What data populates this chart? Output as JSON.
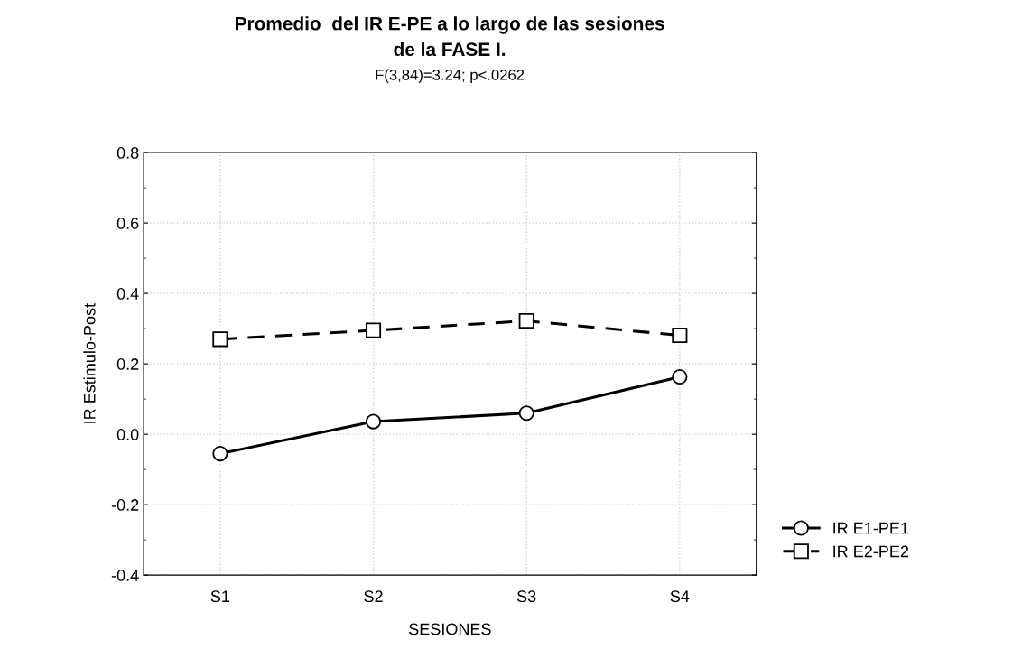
{
  "chart_data": {
    "type": "line",
    "title": "Promedio  del IR E-PE a lo largo de las sesiones\nde la FASE I.",
    "subtitle": "F(3,84)=3.24; p<.0262",
    "xlabel": "SESIONES",
    "ylabel": "IR Estimulo-Post",
    "categories": [
      "S1",
      "S2",
      "S3",
      "S4"
    ],
    "series": [
      {
        "name": "IR E1-PE1",
        "color": "#000000",
        "values": [
          -0.055,
          0.036,
          0.06,
          0.163
        ],
        "marker": "circle",
        "line_style": "solid"
      },
      {
        "name": "IR E2-PE2",
        "color": "#000000",
        "values": [
          0.27,
          0.295,
          0.322,
          0.281
        ],
        "marker": "square",
        "line_style": "dashed"
      }
    ],
    "ylim": [
      -0.4,
      0.8
    ],
    "yticks": [
      -0.4,
      -0.2,
      {
        "value": 0,
        "label": "0.0"
      },
      0.2,
      0.4,
      0.6,
      0.8
    ],
    "grid": true,
    "legend": "bottom right"
  }
}
